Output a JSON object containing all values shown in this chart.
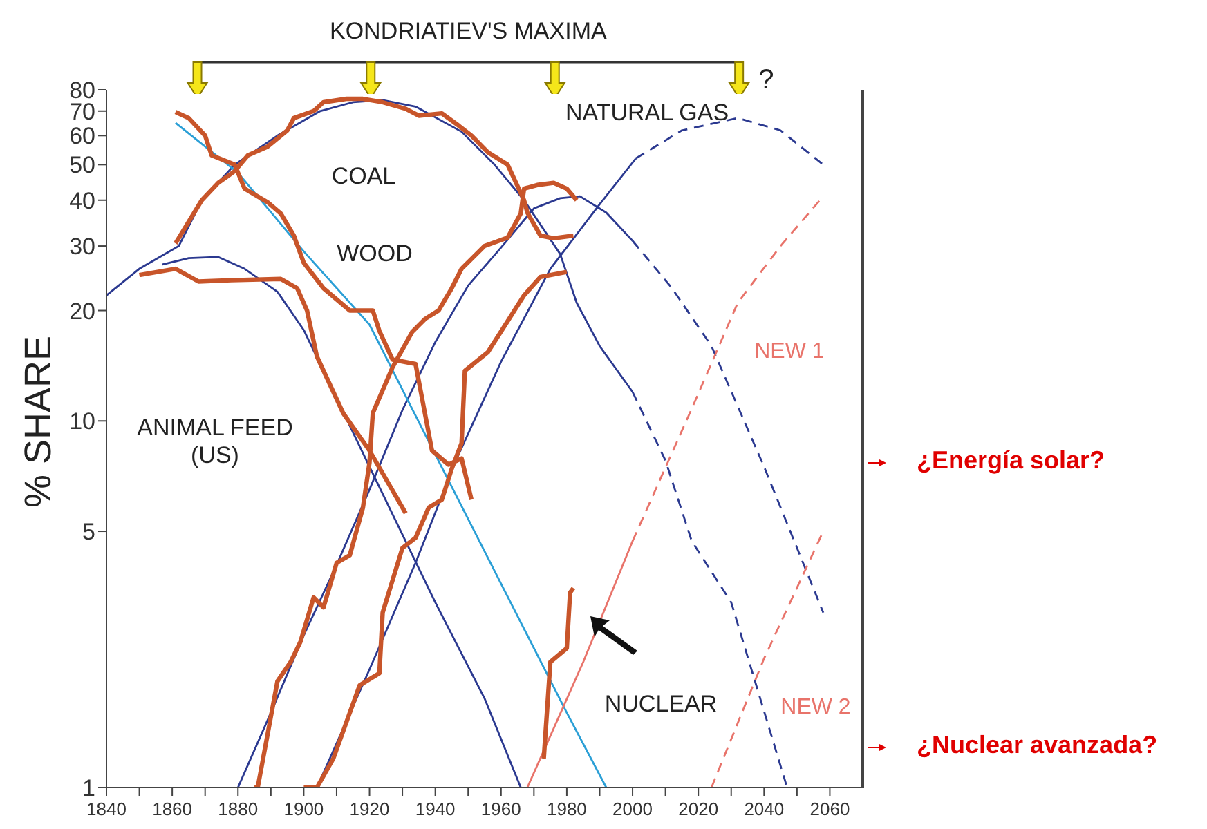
{
  "chart_data": {
    "type": "line",
    "title": "KONDRIATIEV'S MAXIMA",
    "ylabel": "% SHARE",
    "log": true,
    "xlim": [
      1840,
      2070
    ],
    "xticks": [
      1840,
      {
        "value": 1850,
        "label": null
      },
      1860,
      {
        "value": 1870,
        "label": null
      },
      1880,
      {
        "value": 1890,
        "label": null
      },
      1900,
      {
        "value": 1910,
        "label": null
      },
      1920,
      {
        "value": 1930,
        "label": null
      },
      1940,
      {
        "value": 1950,
        "label": null
      },
      1960,
      {
        "value": 1970,
        "label": null
      },
      1980,
      {
        "value": 1990,
        "label": null
      },
      2000,
      {
        "value": 2010,
        "label": null
      },
      2020,
      {
        "value": 2030,
        "label": null
      },
      2040,
      {
        "value": 2050,
        "label": null
      },
      2060
    ],
    "ylim": [
      1,
      80
    ],
    "yticks": [
      1,
      5,
      10,
      20,
      30,
      40,
      50,
      60,
      70,
      80
    ],
    "series": [
      {
        "color": "#2b3990",
        "line_style": "solid",
        "x": [
          1840,
          1850,
          1862,
          1869,
          1879,
          1892,
          1905,
          1915,
          1924,
          1934,
          1948,
          1958,
          1967,
          1978,
          1983,
          1990,
          2000
        ],
        "values": [
          22,
          26,
          30,
          40,
          50,
          60,
          70,
          74,
          75,
          72,
          61.5,
          50,
          40,
          28.5,
          21,
          16,
          12
        ]
      },
      {
        "color": "#2b3990",
        "line_style": "dashed",
        "x": [
          2000,
          2010,
          2018,
          2030,
          2047
        ],
        "values": [
          12,
          7.8,
          4.7,
          3.2,
          1
        ]
      },
      {
        "color": "#2b3990",
        "line_style": "solid",
        "x": [
          1880,
          1890,
          1900,
          1910,
          1920,
          1930,
          1940,
          1950,
          1960,
          1970,
          1978,
          1984,
          1992,
          2000
        ],
        "values": [
          1,
          1.6,
          2.6,
          4.05,
          6.5,
          10.7,
          16.4,
          23.4,
          29.7,
          38,
          40.5,
          41,
          37,
          31
        ]
      },
      {
        "color": "#2b3990",
        "line_style": "dashed",
        "x": [
          2000,
          2012,
          2024,
          2040,
          2058
        ],
        "values": [
          31,
          23,
          16,
          7.5,
          3
        ]
      },
      {
        "color": "#2b3990",
        "line_style": "solid",
        "x": [
          1904,
          1920,
          1934,
          1946,
          1960,
          1975,
          1990,
          2001
        ],
        "values": [
          1,
          2.1,
          4.1,
          7.7,
          14.5,
          26,
          39,
          52
        ]
      },
      {
        "color": "#2b3990",
        "line_style": "dashed",
        "x": [
          2001,
          2015,
          2032,
          2045,
          2058
        ],
        "values": [
          52,
          62,
          67,
          62,
          50
        ]
      },
      {
        "color": "#2b9fd6",
        "line_style": "solid",
        "x": [
          1861,
          1880,
          1900,
          1920,
          1940,
          1960,
          1980,
          1992
        ],
        "values": [
          65,
          47.5,
          29,
          18.3,
          8.1,
          3.6,
          1.6,
          1
        ]
      },
      {
        "color": "#2b3990",
        "line_style": "solid",
        "x": [
          1857,
          1865,
          1874,
          1882,
          1892,
          1900,
          1920,
          1940,
          1955,
          1966
        ],
        "values": [
          26.7,
          27.8,
          28,
          26,
          22.5,
          17.7,
          7.5,
          3.2,
          1.75,
          1
        ]
      },
      {
        "color": "#e8736a",
        "line_style": "solid",
        "x": [
          1968,
          1985,
          2000
        ],
        "values": [
          1,
          2.2,
          4.7
        ]
      },
      {
        "name": "NEW 1",
        "color": "#e8736a",
        "line_style": "dashed",
        "x": [
          2000,
          2018,
          2032,
          2045,
          2058
        ],
        "values": [
          4.7,
          10.8,
          21,
          30,
          41
        ]
      },
      {
        "name": "NEW 2",
        "color": "#e8736a",
        "line_style": "dashed",
        "x": [
          2024,
          2040,
          2058
        ],
        "values": [
          1,
          2.25,
          5
        ]
      },
      {
        "color": "#c8552a",
        "line_style": "solid",
        "x": [
          1861,
          1869,
          1874,
          1879,
          1883,
          1889,
          1895,
          1897,
          1903,
          1906,
          1913,
          1918,
          1924,
          1931,
          1935,
          1942,
          1947,
          1951,
          1956,
          1962,
          1967,
          1968,
          1972,
          1976,
          1982
        ],
        "values": [
          30.5,
          40,
          44.6,
          48,
          53,
          56,
          62,
          67,
          70,
          74,
          75.6,
          75.6,
          74,
          71,
          68,
          69,
          64,
          60,
          54,
          50,
          40,
          37,
          32,
          31.5,
          32
        ]
      },
      {
        "color": "#c8552a",
        "line_style": "solid",
        "x": [
          1861,
          1865,
          1870,
          1872,
          1879,
          1882,
          1889,
          1893,
          1897,
          1900,
          1906,
          1914,
          1921,
          1923,
          1927,
          1934,
          1939,
          1944,
          1948,
          1951
        ],
        "values": [
          69.6,
          67,
          60,
          53,
          50,
          43,
          39.5,
          36.8,
          32,
          27,
          23,
          20,
          20,
          17.6,
          14.7,
          14.3,
          8.3,
          7.6,
          7.9,
          6.1
        ]
      },
      {
        "color": "#c8552a",
        "line_style": "solid",
        "x": [
          1850,
          1861,
          1868,
          1878,
          1893,
          1898,
          1901,
          1904,
          1912,
          1920,
          1931
        ],
        "values": [
          25,
          26,
          24,
          24.2,
          24.4,
          23,
          20,
          15,
          10.5,
          8.3,
          5.6
        ]
      },
      {
        "color": "#c8552a",
        "line_style": "solid",
        "x": [
          1885,
          1886,
          1892,
          1896,
          1899,
          1903,
          1906,
          1910,
          1914,
          1918,
          1920,
          1921,
          1927,
          1933,
          1937,
          1941,
          1945,
          1948,
          1955,
          1962,
          1966,
          1967,
          1971,
          1976,
          1980,
          1983
        ],
        "values": [
          1,
          1,
          1.95,
          2.2,
          2.5,
          3.3,
          3.1,
          4.1,
          4.3,
          5.8,
          7.7,
          10.5,
          14,
          17.5,
          19,
          20,
          23,
          26,
          30,
          31.6,
          36.8,
          43,
          44,
          44.6,
          43,
          40
        ]
      },
      {
        "color": "#c8552a",
        "line_style": "solid",
        "x": [
          1900,
          1904,
          1909,
          1917,
          1923,
          1924,
          1930,
          1934,
          1938,
          1942,
          1945,
          1948,
          1949,
          1956,
          1962,
          1967,
          1972,
          1980
        ],
        "values": [
          1,
          1,
          1.2,
          1.9,
          2.05,
          3,
          4.5,
          4.8,
          5.8,
          6.1,
          7.4,
          8.7,
          13.7,
          15.4,
          18.7,
          22,
          24.7,
          25.5
        ]
      },
      {
        "color": "#c8552a",
        "line_style": "solid",
        "x": [
          1973,
          1975,
          1980,
          1981,
          1982
        ],
        "values": [
          1.2,
          2.2,
          2.4,
          3.4,
          3.5
        ]
      }
    ],
    "annotations": [
      "COAL",
      "WOOD",
      "ANIMAL FEED (US)",
      "NATURAL GAS",
      "NUCLEAR",
      "?",
      "¿Energía solar?",
      "¿Nuclear avanzada?"
    ]
  }
}
